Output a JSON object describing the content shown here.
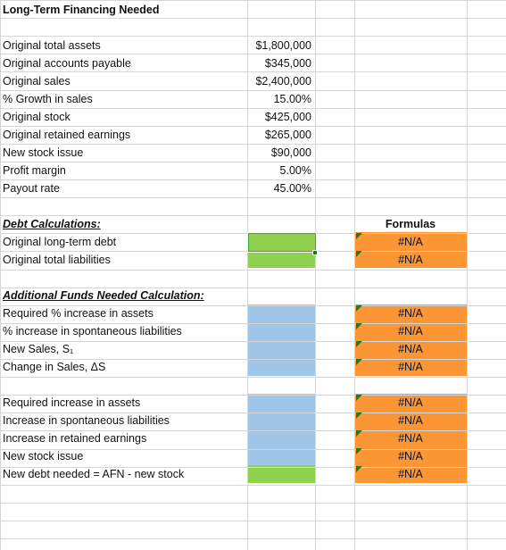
{
  "sheet": {
    "title": "Long-Term Financing Needed",
    "inputs": [
      {
        "label": "Original total assets",
        "value": "$1,800,000"
      },
      {
        "label": "Original accounts payable",
        "value": "$345,000"
      },
      {
        "label": "Original sales",
        "value": "$2,400,000"
      },
      {
        "label": "% Growth in sales",
        "value": "15.00%"
      },
      {
        "label": "Original stock",
        "value": "$425,000"
      },
      {
        "label": "Original retained earnings",
        "value": "$265,000"
      },
      {
        "label": "New stock issue",
        "value": "$90,000"
      },
      {
        "label": "Profit margin",
        "value": "5.00%"
      },
      {
        "label": "Payout rate",
        "value": "45.00%"
      }
    ],
    "debt": {
      "heading": "Debt Calculations:",
      "formulas_header": "Formulas",
      "rows": [
        {
          "label": "Original long-term debt",
          "formula": "#N/A"
        },
        {
          "label": "Original total liabilities",
          "formula": "#N/A"
        }
      ]
    },
    "afn": {
      "heading": "Additional Funds Needed Calculation:",
      "rows_a": [
        {
          "label": "Required % increase in assets",
          "formula": "#N/A"
        },
        {
          "label": "% increase in spontaneous liabilities",
          "formula": "#N/A"
        },
        {
          "label": "New Sales, S₁",
          "formula": "#N/A"
        },
        {
          "label": "Change in Sales, ΔS",
          "formula": "#N/A"
        }
      ],
      "rows_b": [
        {
          "label": "Required increase in assets",
          "formula": "#N/A"
        },
        {
          "label": "Increase in spontaneous liabilities",
          "formula": "#N/A"
        },
        {
          "label": "Increase in retained earnings",
          "formula": "#N/A"
        },
        {
          "label": "New stock issue",
          "formula": "#N/A"
        },
        {
          "label": "New debt needed = AFN - new stock",
          "formula": "#N/A"
        }
      ]
    },
    "colors": {
      "input_fill": "#8fd14f",
      "calc_fill": "#9fc5e8",
      "formula_fill": "#fc9534",
      "grid": "#d6d6d6"
    }
  }
}
